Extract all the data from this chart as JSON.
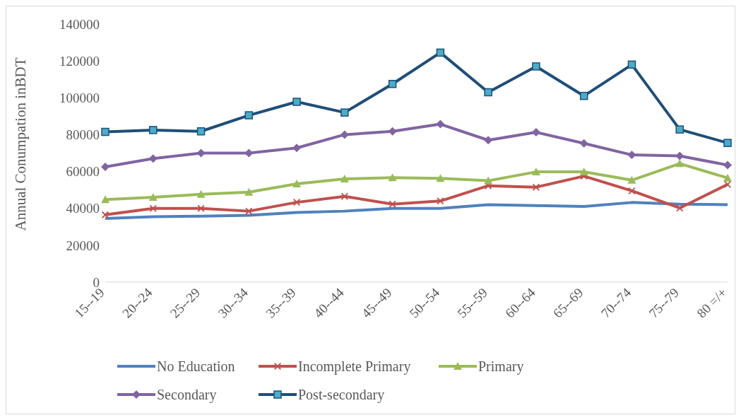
{
  "chart_data": {
    "type": "line",
    "ylabel": "Annual Conumpation inBDT",
    "categories": [
      "15--19",
      "20--24",
      "25--29",
      "30--34",
      "35--39",
      "40--44",
      "45--49",
      "50--54",
      "55--59",
      "60--64",
      "65--69",
      "70--74",
      "75--79",
      "80 =/+"
    ],
    "ylim": [
      0,
      140000
    ],
    "yticks": [
      0,
      20000,
      40000,
      60000,
      80000,
      100000,
      120000,
      140000
    ],
    "grid": false,
    "legend": "bottom",
    "series": [
      {
        "name": "No Education",
        "color": "#4f81bd",
        "marker": "none",
        "values": [
          34500,
          35500,
          35800,
          36200,
          37800,
          38500,
          40000,
          40000,
          42000,
          41500,
          41000,
          43200,
          42300,
          42000
        ]
      },
      {
        "name": "Incomplete Primary",
        "color": "#c0504d",
        "marker": "cross",
        "values": [
          36500,
          40000,
          40000,
          38500,
          43300,
          46500,
          42300,
          44000,
          52300,
          51500,
          57500,
          49500,
          40200,
          53000
        ]
      },
      {
        "name": "Primary",
        "color": "#9bbb59",
        "marker": "triangle",
        "values": [
          44800,
          46000,
          47700,
          48800,
          53300,
          56000,
          56700,
          56300,
          55000,
          59800,
          59800,
          55300,
          64300,
          56500
        ]
      },
      {
        "name": "Secondary",
        "color": "#8064a2",
        "marker": "diamond",
        "values": [
          62500,
          67000,
          70000,
          70000,
          72800,
          80000,
          81800,
          85700,
          77000,
          81300,
          75300,
          69000,
          68500,
          63500
        ]
      },
      {
        "name": "Post-secondary",
        "color": "#1f4e79",
        "marker": "square",
        "values": [
          81500,
          82500,
          81800,
          90500,
          97800,
          92000,
          107500,
          124500,
          103000,
          117000,
          101000,
          118000,
          82800,
          75500
        ]
      }
    ]
  }
}
